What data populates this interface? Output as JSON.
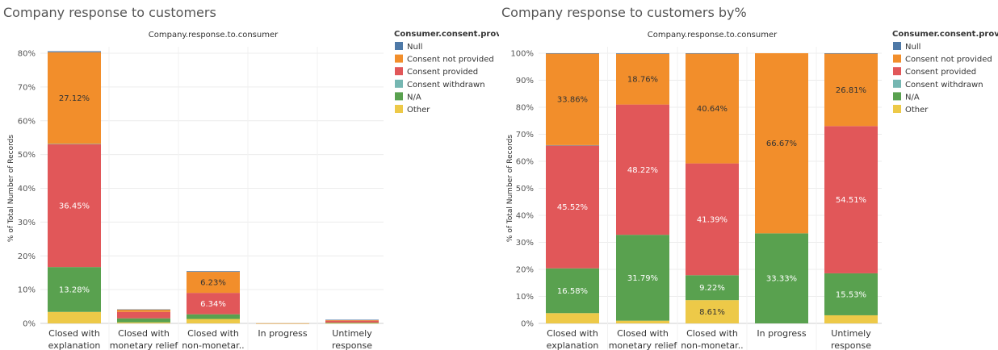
{
  "colors": {
    "Null": "#4e79a7",
    "Consent not provided": "#f28e2b",
    "Consent provided": "#e15759",
    "Consent withdrawn": "#76b7b2",
    "N/A": "#59a14f",
    "Other": "#edc948"
  },
  "chart_data": [
    {
      "type": "bar",
      "stacked": true,
      "title": "Company response to customers",
      "column_header": "Company.response.to.consumer",
      "xlabel": "",
      "ylabel": "% of Total Number of Records",
      "ylim": [
        0,
        80
      ],
      "yticks": [
        "0%",
        "10%",
        "20%",
        "30%",
        "40%",
        "50%",
        "60%",
        "70%",
        "80%"
      ],
      "grid": true,
      "legend_title": "Consumer.consent.provided.",
      "legend_position": "right",
      "legend": [
        "Null",
        "Consent not provided",
        "Consent provided",
        "Consent withdrawn",
        "N/A",
        "Other"
      ],
      "categories": [
        [
          "Closed with",
          "explanation"
        ],
        [
          "Closed with",
          "monetary relief"
        ],
        [
          "Closed with",
          "non-monetar.."
        ],
        [
          "In progress"
        ],
        [
          "Untimely",
          "response"
        ]
      ],
      "series": [
        {
          "name": "Other",
          "values": [
            3.4,
            0.3,
            1.3,
            0,
            0.1
          ]
        },
        {
          "name": "N/A",
          "values": [
            13.28,
            1.2,
            1.4,
            0.01,
            0.15
          ]
        },
        {
          "name": "Consent provided",
          "values": [
            36.45,
            1.9,
            6.34,
            0,
            0.55
          ]
        },
        {
          "name": "Consent withdrawn",
          "values": [
            0.05,
            0,
            0,
            0,
            0
          ]
        },
        {
          "name": "Consent not provided",
          "values": [
            27.12,
            0.7,
            6.23,
            0.02,
            0.27
          ]
        },
        {
          "name": "Null",
          "values": [
            0.3,
            0.05,
            0.2,
            0,
            0.02
          ]
        }
      ],
      "labels": [
        {
          "category": 0,
          "series": "N/A",
          "text": "13.28%"
        },
        {
          "category": 0,
          "series": "Consent provided",
          "text": "36.45%"
        },
        {
          "category": 0,
          "series": "Consent not provided",
          "text": "27.12%"
        },
        {
          "category": 2,
          "series": "Consent provided",
          "text": "6.34%"
        },
        {
          "category": 2,
          "series": "Consent not provided",
          "text": "6.23%"
        }
      ]
    },
    {
      "type": "bar",
      "stacked": true,
      "title": "Company response to customers by%",
      "column_header": "Company.response.to.consumer",
      "xlabel": "",
      "ylabel": "% of Total Number of Records",
      "ylim": [
        0,
        100
      ],
      "yticks": [
        "0%",
        "10%",
        "20%",
        "30%",
        "40%",
        "50%",
        "60%",
        "70%",
        "80%",
        "90%",
        "100%"
      ],
      "grid": true,
      "legend_title": "Consumer.consent.provided.",
      "legend_position": "right",
      "legend": [
        "Null",
        "Consent not provided",
        "Consent provided",
        "Consent withdrawn",
        "N/A",
        "Other"
      ],
      "categories": [
        [
          "Closed with",
          "explanation"
        ],
        [
          "Closed with",
          "monetary relief"
        ],
        [
          "Closed with",
          "non-monetar.."
        ],
        [
          "In progress"
        ],
        [
          "Untimely",
          "response"
        ]
      ],
      "series": [
        {
          "name": "Other",
          "values": [
            3.8,
            1.0,
            8.61,
            0,
            3.0
          ]
        },
        {
          "name": "N/A",
          "values": [
            16.58,
            31.79,
            9.22,
            33.33,
            15.53
          ]
        },
        {
          "name": "Consent provided",
          "values": [
            45.52,
            48.22,
            41.39,
            0,
            54.51
          ]
        },
        {
          "name": "Consent withdrawn",
          "values": [
            0.1,
            0,
            0,
            0,
            0
          ]
        },
        {
          "name": "Consent not provided",
          "values": [
            33.86,
            18.76,
            40.64,
            66.67,
            26.81
          ]
        },
        {
          "name": "Null",
          "values": [
            0.14,
            0.23,
            0.14,
            0,
            0.15
          ]
        }
      ],
      "labels": [
        {
          "category": 0,
          "series": "N/A",
          "text": "16.58%"
        },
        {
          "category": 0,
          "series": "Consent provided",
          "text": "45.52%"
        },
        {
          "category": 0,
          "series": "Consent not provided",
          "text": "33.86%"
        },
        {
          "category": 1,
          "series": "N/A",
          "text": "31.79%"
        },
        {
          "category": 1,
          "series": "Consent provided",
          "text": "48.22%"
        },
        {
          "category": 1,
          "series": "Consent not provided",
          "text": "18.76%"
        },
        {
          "category": 2,
          "series": "Other",
          "text": "8.61%"
        },
        {
          "category": 2,
          "series": "N/A",
          "text": "9.22%"
        },
        {
          "category": 2,
          "series": "Consent provided",
          "text": "41.39%"
        },
        {
          "category": 2,
          "series": "Consent not provided",
          "text": "40.64%"
        },
        {
          "category": 3,
          "series": "N/A",
          "text": "33.33%"
        },
        {
          "category": 3,
          "series": "Consent not provided",
          "text": "66.67%"
        },
        {
          "category": 4,
          "series": "N/A",
          "text": "15.53%"
        },
        {
          "category": 4,
          "series": "Consent provided",
          "text": "54.51%"
        },
        {
          "category": 4,
          "series": "Consent not provided",
          "text": "26.81%"
        }
      ]
    }
  ]
}
